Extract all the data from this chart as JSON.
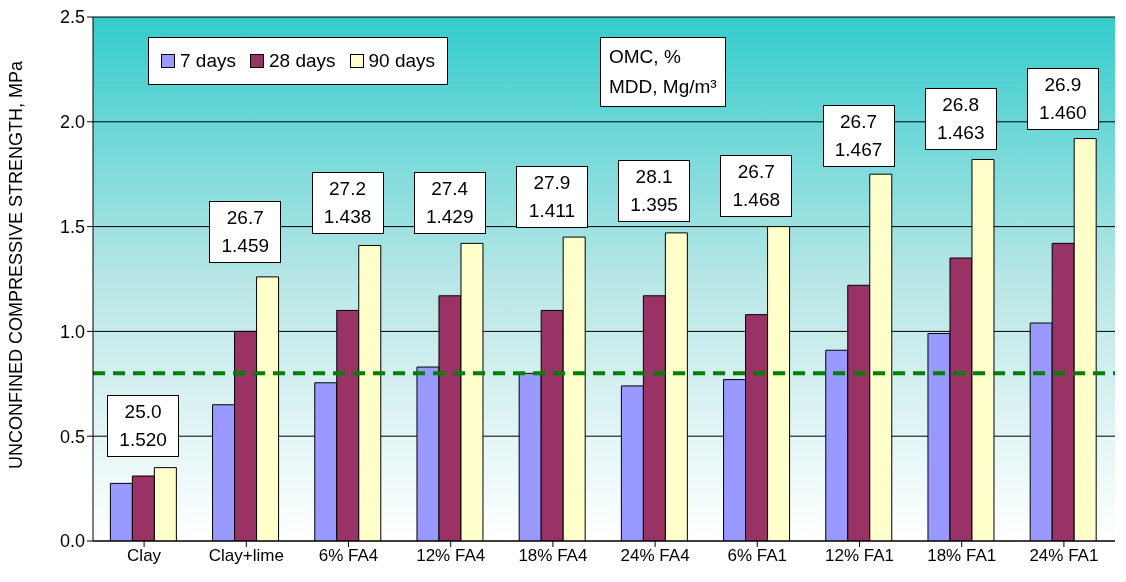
{
  "chart_data": {
    "type": "bar",
    "ylabel": "UNCONFINED COMPRESSIVE STRENGTH, MPa",
    "categories": [
      "Clay",
      "Clay+lime",
      "6% FA4",
      "12% FA4",
      "18% FA4",
      "24% FA4",
      "6% FA1",
      "12% FA1",
      "18% FA1",
      "24% FA1"
    ],
    "series": [
      {
        "name": "7 days",
        "color": "#9999ff",
        "values": [
          0.275,
          0.65,
          0.755,
          0.83,
          0.8,
          0.74,
          0.77,
          0.91,
          0.99,
          1.04
        ]
      },
      {
        "name": "28 days",
        "color": "#993366",
        "values": [
          0.31,
          1.0,
          1.1,
          1.17,
          1.1,
          1.17,
          1.08,
          1.22,
          1.35,
          1.42
        ]
      },
      {
        "name": "90 days",
        "color": "#ffffcc",
        "values": [
          0.35,
          1.26,
          1.41,
          1.42,
          1.45,
          1.47,
          1.5,
          1.75,
          1.82,
          1.92
        ]
      }
    ],
    "ylim": [
      0,
      2.5
    ],
    "yticks": [
      {
        "value": 0,
        "label": "0.0"
      },
      0.5,
      {
        "value": 1,
        "label": "1.0"
      },
      1.5,
      {
        "value": 2,
        "label": "2.0"
      },
      2.5
    ],
    "grid": "y",
    "legend": "top left",
    "ref_lines": [
      {
        "axis": "y",
        "value": 0.8,
        "color": "#008000",
        "line_style": "dashed"
      }
    ],
    "annotations": [
      "OMC, %\nMDD, Mg/m³",
      "25.0\n1.520",
      "26.7\n1.459",
      "27.2\n1.438",
      "27.4\n1.429",
      "27.9\n1.411",
      "28.1\n1.395",
      "26.7\n1.468",
      "26.7\n1.467",
      "26.8\n1.463",
      "26.9\n1.460"
    ]
  }
}
